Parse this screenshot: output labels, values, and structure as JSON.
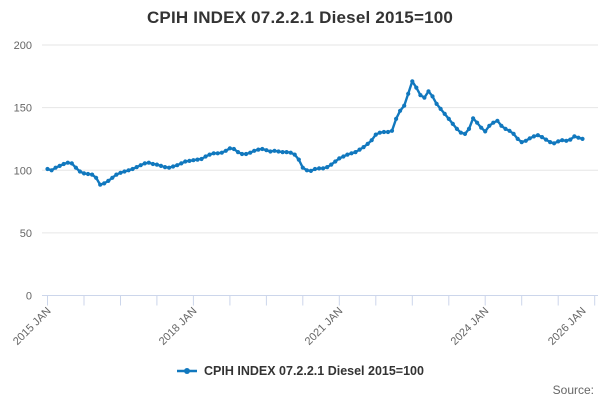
{
  "title": "CPIH INDEX 07.2.2.1 Diesel 2015=100",
  "legend": {
    "label": "CPIH INDEX 07.2.2.1 Diesel 2015=100"
  },
  "source_label": "Source:",
  "colors": {
    "series": "#1178be",
    "grid": "#e6e6e6",
    "axis": "#ccd6eb",
    "tick_label": "#666666",
    "title": "#333333"
  },
  "chart_data": {
    "type": "line",
    "title": "CPIH INDEX 07.2.2.1 Diesel 2015=100",
    "xlabel": "",
    "ylabel": "",
    "ylim": [
      0,
      200
    ],
    "grid": true,
    "legend_position": "bottom-center",
    "y_ticks": [
      0,
      50,
      100,
      150,
      200
    ],
    "x_start": "2015-01",
    "x_end": "2026-01",
    "x_interval": "monthly",
    "x_minor_tick_interval_months": 9,
    "x_minor_tick_max_month": 135,
    "x_ticks": [
      {
        "month": 0,
        "label": "2015 JAN"
      },
      {
        "month": 36,
        "label": "2018 JAN"
      },
      {
        "month": 72,
        "label": "2021 JAN"
      },
      {
        "month": 108,
        "label": "2024 JAN"
      },
      {
        "month": 132,
        "label": "2026 JAN"
      }
    ],
    "series": [
      {
        "name": "CPIH INDEX 07.2.2.1 Diesel 2015=100",
        "color": "#1178be",
        "marker": "circle",
        "values": [
          101,
          100,
          102,
          103.5,
          105,
          106,
          105.5,
          102,
          99,
          97.5,
          97,
          96.5,
          94,
          88.5,
          89.5,
          91.5,
          94,
          96.5,
          98,
          99,
          100,
          101,
          102.5,
          104,
          105.5,
          106,
          105,
          104.5,
          103.5,
          102.5,
          102,
          103,
          104,
          105.5,
          107,
          107.5,
          108,
          108.5,
          109,
          111,
          112.5,
          113.5,
          113.5,
          114,
          115.5,
          117.5,
          117,
          114.5,
          113,
          113,
          114,
          115.5,
          116.5,
          117,
          116,
          115,
          115.5,
          115,
          114.5,
          114.5,
          114,
          112.5,
          108.5,
          102,
          100,
          99.5,
          101,
          101.5,
          101.5,
          102.5,
          104.5,
          107,
          109.5,
          111,
          112.5,
          113.5,
          114.5,
          116.5,
          118.5,
          121,
          124,
          128.5,
          130,
          130.5,
          130.5,
          131.5,
          141,
          147.5,
          151.5,
          161,
          171,
          166,
          160,
          158,
          163,
          159,
          153,
          149,
          145,
          141,
          137,
          133,
          130,
          129,
          133,
          141.5,
          138,
          134,
          131,
          135.5,
          138,
          139.5,
          135.5,
          133,
          131.5,
          129,
          125,
          122.5,
          123.5,
          125.5,
          127,
          128,
          126.5,
          124.5,
          122.5,
          121.5,
          123,
          124,
          123.5,
          124.5,
          127,
          126,
          125
        ]
      }
    ]
  }
}
